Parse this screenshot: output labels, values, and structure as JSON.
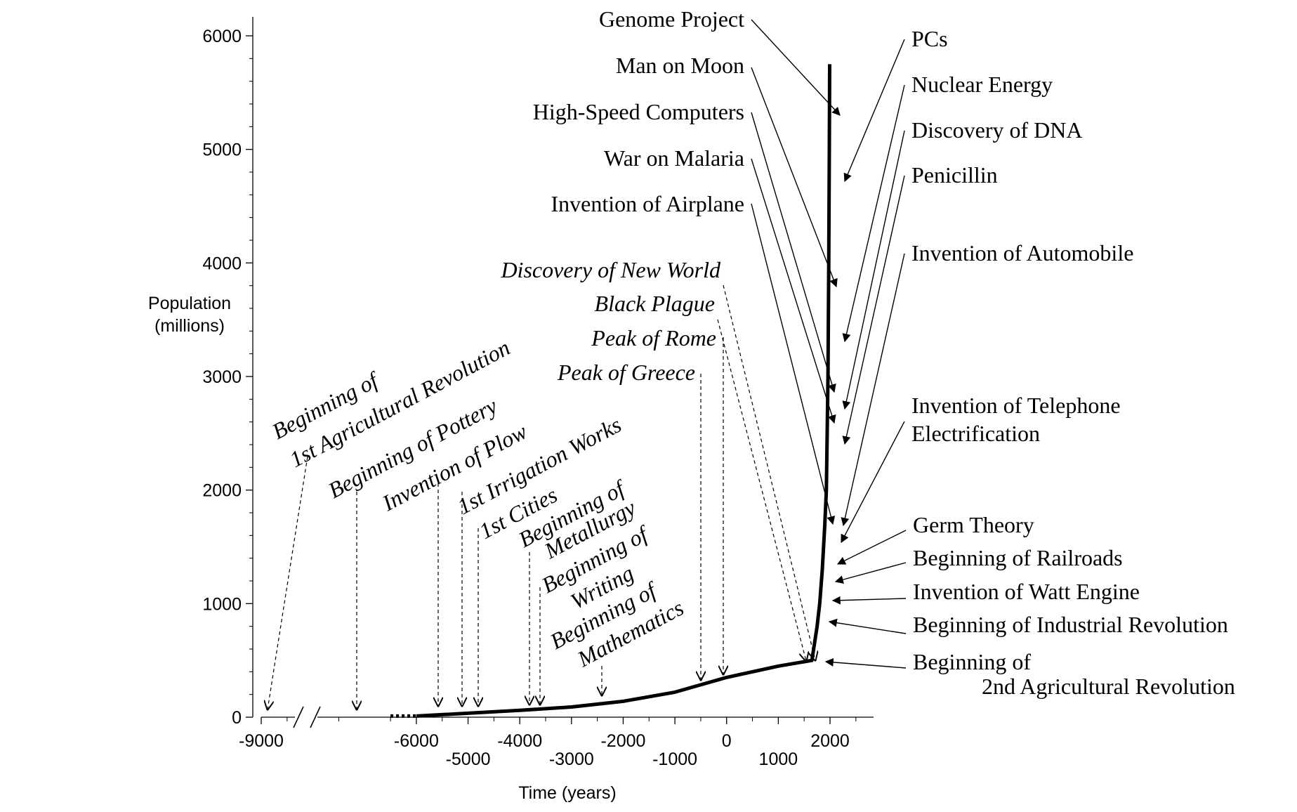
{
  "chart_data": {
    "type": "line",
    "ylabel": [
      "Population",
      "(millions)"
    ],
    "xlabel": "Time (years)",
    "ylim": [
      0,
      6000
    ],
    "xlim": [
      -9000,
      2500
    ],
    "grid": false,
    "y_ticks": [
      {
        "value": 0,
        "label": "0"
      },
      {
        "value": 1000,
        "label": "1000"
      },
      {
        "value": 2000,
        "label": "2000"
      },
      {
        "value": 3000,
        "label": "3000"
      },
      {
        "value": 4000,
        "label": "4000"
      },
      {
        "value": 5000,
        "label": "5000"
      },
      {
        "value": 6000,
        "label": "6000"
      }
    ],
    "x_ticks": [
      {
        "value": -9000,
        "label": "-9000",
        "row": "upper"
      },
      {
        "value": -6000,
        "label": "-6000",
        "row": "upper"
      },
      {
        "value": -5000,
        "label": "-5000",
        "row": "lower"
      },
      {
        "value": -4000,
        "label": "-4000",
        "row": "upper"
      },
      {
        "value": -3000,
        "label": "-3000",
        "row": "lower"
      },
      {
        "value": -2000,
        "label": "-2000",
        "row": "upper"
      },
      {
        "value": -1000,
        "label": "-1000",
        "row": "lower"
      },
      {
        "value": 0,
        "label": "0",
        "row": "upper"
      },
      {
        "value": 1000,
        "label": "1000",
        "row": "lower"
      },
      {
        "value": 2000,
        "label": "2000",
        "row": "upper"
      }
    ],
    "x_minor_ticks": [
      -8500,
      -7500,
      -6500,
      -5500,
      -4500,
      -3500,
      -2500,
      -1500,
      -500,
      500,
      1500,
      2500
    ],
    "y_minor_ticks": [
      200,
      400,
      600,
      800,
      1200,
      1400,
      1600,
      1800,
      2200,
      2400,
      2600,
      2800,
      3200,
      3400,
      3600,
      3800,
      4200,
      4400,
      4600,
      4800,
      5200,
      5400,
      5600,
      5800
    ],
    "series": [
      {
        "dotted_segment": {
          "x": [
            -6500,
            -6000
          ],
          "y": [
            10,
            10
          ]
        },
        "x": [
          -6000,
          -4000,
          -3000,
          -2000,
          -1000,
          0,
          1000,
          1650,
          1750,
          1800,
          1850,
          1900,
          1930,
          1960,
          1975,
          1987,
          1993
        ],
        "y": [
          10,
          60,
          90,
          140,
          220,
          350,
          450,
          500,
          800,
          1000,
          1300,
          1700,
          2000,
          3000,
          4000,
          5000,
          5750
        ]
      }
    ],
    "annotations_left": [
      {
        "text": [
          "Beginning of",
          "1st Agricultural Revolution"
        ],
        "x_year": -9000,
        "style": "italic-rotated"
      },
      {
        "text": [
          "Beginning of Pottery"
        ],
        "x_year": -6000,
        "style": "italic-rotated"
      },
      {
        "text": [
          "Invention of Plow"
        ],
        "x_year": -4700,
        "style": "italic-rotated"
      },
      {
        "text": [
          "1st Irrigation Works"
        ],
        "x_year": -4300,
        "style": "italic-rotated"
      },
      {
        "text": [
          "1st Cities"
        ],
        "x_year": -4000,
        "style": "italic-rotated"
      },
      {
        "text": [
          "Beginning of",
          "Metallurgy"
        ],
        "x_year": -3300,
        "style": "italic-rotated"
      },
      {
        "text": [
          "Beginning of",
          "Writing"
        ],
        "x_year": -3200,
        "style": "italic-rotated"
      },
      {
        "text": [
          "Beginning of",
          "Mathematics"
        ],
        "x_year": -2000,
        "style": "italic-rotated"
      },
      {
        "text": [
          "Peak of Greece"
        ],
        "x_year": -400,
        "style": "italic"
      },
      {
        "text": [
          "Peak of Rome"
        ],
        "x_year": 0,
        "style": "italic"
      },
      {
        "text": [
          "Black Plague"
        ],
        "x_year": 1350,
        "style": "italic"
      },
      {
        "text": [
          "Discovery of New World"
        ],
        "x_year": 1500,
        "style": "italic"
      }
    ],
    "annotations_upper_left": [
      {
        "text": "Genome Project"
      },
      {
        "text": "Man on Moon"
      },
      {
        "text": "High-Speed Computers"
      },
      {
        "text": "War on Malaria"
      },
      {
        "text": "Invention of Airplane"
      }
    ],
    "annotations_right": [
      {
        "text": [
          "PCs"
        ]
      },
      {
        "text": [
          "Nuclear Energy"
        ]
      },
      {
        "text": [
          "Discovery of DNA"
        ]
      },
      {
        "text": [
          "Penicillin"
        ]
      },
      {
        "text": [
          "Invention of Automobile"
        ]
      },
      {
        "text": [
          "Invention of Telephone",
          "Electrification"
        ]
      },
      {
        "text": [
          "Germ Theory"
        ]
      },
      {
        "text": [
          "Beginning of Railroads"
        ]
      },
      {
        "text": [
          "Invention of Watt Engine"
        ]
      },
      {
        "text": [
          "Beginning of Industrial Revolution"
        ]
      },
      {
        "text": [
          "Beginning of",
          "2nd Agricultural Revolution"
        ]
      }
    ]
  }
}
